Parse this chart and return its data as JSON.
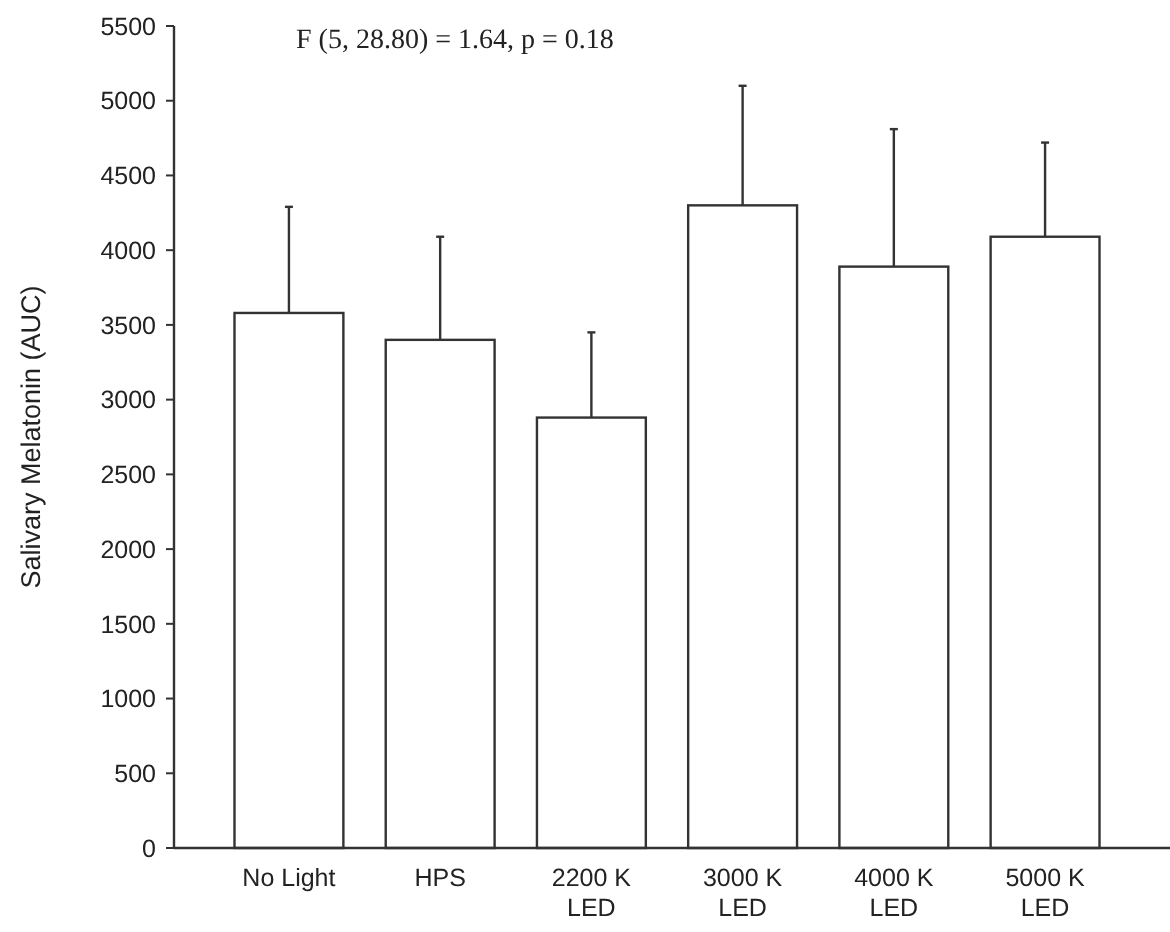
{
  "chart_data": {
    "type": "bar",
    "ylabel": "Salivary Melatonin (AUC)",
    "categories": [
      "No Light",
      "HPS",
      "2200 K\nLED",
      "3000 K\nLED",
      "4000 K\nLED",
      "5000 K\nLED"
    ],
    "values": [
      3580,
      3400,
      2880,
      4300,
      3890,
      4090
    ],
    "errors": [
      [
        3580,
        4290
      ],
      [
        3400,
        4090
      ],
      [
        2880,
        3450
      ],
      [
        4300,
        5100
      ],
      [
        3890,
        4810
      ],
      [
        4090,
        4720
      ]
    ],
    "color": "#ffffff",
    "ylim": [
      0,
      5500
    ],
    "yticks": [
      0,
      500,
      1000,
      1500,
      2000,
      2500,
      3000,
      3500,
      4000,
      4500,
      5000,
      5500
    ],
    "annotations": [
      "F (5, 28.80) = 1.64, p = 0.18"
    ]
  }
}
